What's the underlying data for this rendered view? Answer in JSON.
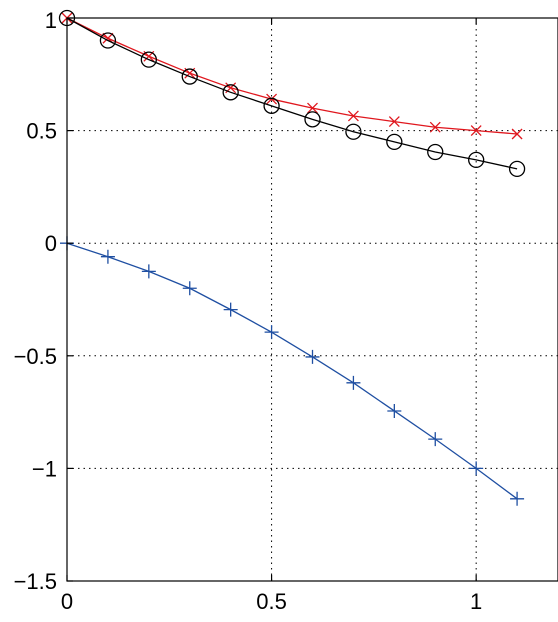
{
  "chart_data": {
    "type": "line",
    "title": "",
    "xlabel": "",
    "ylabel": "",
    "xlim": [
      0,
      1.2
    ],
    "ylim": [
      -1.5,
      1
    ],
    "grid": true,
    "grid_style": "dotted",
    "x_ticks": [
      0,
      0.5,
      1
    ],
    "x_tick_labels": [
      "0",
      "0.5",
      "1"
    ],
    "y_ticks": [
      1,
      0.5,
      0,
      -0.5,
      -1,
      -1.5
    ],
    "y_tick_labels": [
      "1",
      "0.5",
      "0",
      "−0.5",
      "−1",
      "−1.5"
    ],
    "x": [
      0,
      0.1,
      0.2,
      0.3,
      0.4,
      0.5,
      0.6,
      0.7,
      0.8,
      0.9,
      1.0,
      1.1
    ],
    "series": [
      {
        "marker": "x",
        "color": "#e0171e",
        "values": [
          1.0,
          0.91,
          0.83,
          0.755,
          0.69,
          0.64,
          0.6,
          0.565,
          0.54,
          0.515,
          0.5,
          0.485
        ]
      },
      {
        "marker": "o",
        "color": "#000000",
        "values": [
          1.0,
          0.9,
          0.815,
          0.74,
          0.67,
          0.61,
          0.55,
          0.495,
          0.45,
          0.405,
          0.37,
          0.33
        ]
      },
      {
        "marker": "+",
        "color": "#1f4fa2",
        "values": [
          0.0,
          -0.06,
          -0.125,
          -0.2,
          -0.295,
          -0.395,
          -0.505,
          -0.62,
          -0.745,
          -0.87,
          -1.0,
          -1.135
        ]
      }
    ]
  }
}
